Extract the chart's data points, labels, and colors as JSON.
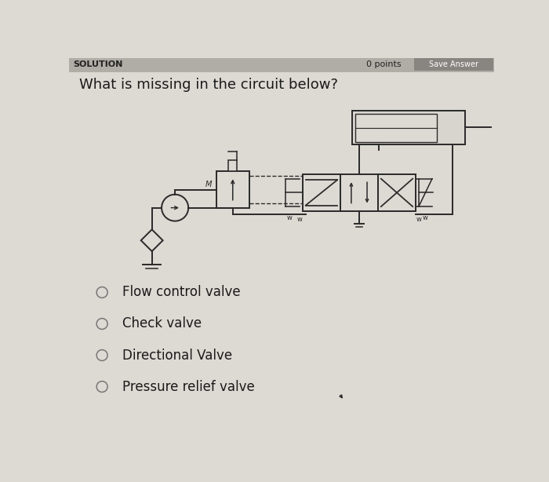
{
  "title": "What is missing in the circuit below?",
  "title_fontsize": 13,
  "options": [
    "Flow control valve",
    "Check valve",
    "Directional Valve",
    "Pressure relief valve"
  ],
  "bg_color": "#ddd9d3",
  "text_color": "#1a1a1a",
  "line_color": "#2a2a2a",
  "option_fontsize": 12,
  "header_bg": "#b0aca6",
  "header_text": "SOLUTION",
  "header_right_text": "0 points",
  "save_btn_color": "#888480",
  "save_btn_text": "Save Answer"
}
